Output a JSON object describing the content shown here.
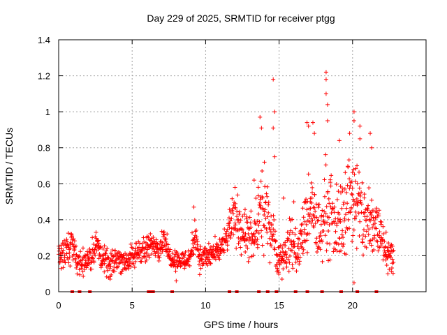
{
  "chart_data": {
    "type": "scatter",
    "title": "Day 229 of 2025, SRMTID for receiver ptgg",
    "xlabel": "GPS time / hours",
    "ylabel": "SRMTID / TECUs",
    "xlim": [
      0,
      25
    ],
    "ylim": [
      0,
      1.4
    ],
    "x_ticks": [
      0,
      5,
      10,
      15,
      20
    ],
    "y_ticks": [
      0,
      0.2,
      0.4,
      0.6,
      0.8,
      1,
      1.2,
      1.4
    ],
    "x_tick_labels": [
      "0",
      "5",
      "10",
      "15",
      "20"
    ],
    "y_tick_labels": [
      "0",
      "0.2",
      "0.4",
      "0.6",
      "0.8",
      "1",
      "1.2",
      "1.4"
    ],
    "grid": true,
    "marker": "+",
    "color": "#ff0000",
    "profile": [
      [
        0.0,
        0.2,
        0.06
      ],
      [
        0.7,
        0.22,
        0.08
      ],
      [
        0.9,
        0.3,
        0.05
      ],
      [
        1.2,
        0.18,
        0.05
      ],
      [
        1.6,
        0.16,
        0.05
      ],
      [
        2.2,
        0.2,
        0.06
      ],
      [
        2.6,
        0.26,
        0.07
      ],
      [
        3.0,
        0.18,
        0.05
      ],
      [
        3.5,
        0.14,
        0.05
      ],
      [
        4.0,
        0.19,
        0.05
      ],
      [
        4.5,
        0.17,
        0.05
      ],
      [
        5.0,
        0.18,
        0.05
      ],
      [
        5.5,
        0.24,
        0.05
      ],
      [
        6.0,
        0.22,
        0.06
      ],
      [
        6.4,
        0.27,
        0.04
      ],
      [
        6.9,
        0.25,
        0.05
      ],
      [
        7.2,
        0.31,
        0.04
      ],
      [
        7.5,
        0.2,
        0.04
      ],
      [
        8.0,
        0.18,
        0.04
      ],
      [
        8.6,
        0.17,
        0.04
      ],
      [
        9.0,
        0.2,
        0.05
      ],
      [
        9.3,
        0.34,
        0.07
      ],
      [
        9.6,
        0.18,
        0.05
      ],
      [
        10.2,
        0.2,
        0.05
      ],
      [
        10.8,
        0.22,
        0.05
      ],
      [
        11.3,
        0.26,
        0.05
      ],
      [
        11.8,
        0.4,
        0.09
      ],
      [
        12.3,
        0.38,
        0.1
      ],
      [
        12.8,
        0.3,
        0.1
      ],
      [
        13.3,
        0.28,
        0.1
      ],
      [
        13.7,
        0.45,
        0.15
      ],
      [
        14.1,
        0.4,
        0.12
      ],
      [
        14.5,
        0.38,
        0.12
      ],
      [
        14.9,
        0.18,
        0.06
      ],
      [
        15.3,
        0.2,
        0.07
      ],
      [
        15.8,
        0.28,
        0.1
      ],
      [
        16.3,
        0.22,
        0.08
      ],
      [
        16.8,
        0.38,
        0.15
      ],
      [
        17.3,
        0.45,
        0.14
      ],
      [
        17.8,
        0.3,
        0.12
      ],
      [
        18.2,
        0.5,
        0.18
      ],
      [
        18.7,
        0.35,
        0.15
      ],
      [
        19.2,
        0.4,
        0.15
      ],
      [
        19.6,
        0.48,
        0.18
      ],
      [
        20.0,
        0.55,
        0.2
      ],
      [
        20.4,
        0.45,
        0.18
      ],
      [
        20.8,
        0.4,
        0.17
      ],
      [
        21.2,
        0.35,
        0.15
      ],
      [
        21.6,
        0.38,
        0.15
      ],
      [
        22.0,
        0.32,
        0.1
      ],
      [
        22.4,
        0.22,
        0.06
      ],
      [
        22.8,
        0.2,
        0.05
      ]
    ],
    "peaks": [
      [
        9.2,
        0.47
      ],
      [
        13.7,
        0.97
      ],
      [
        13.8,
        0.91
      ],
      [
        14.6,
        1.18
      ],
      [
        14.7,
        1.0
      ],
      [
        14.6,
        0.91
      ],
      [
        14.7,
        0.75
      ],
      [
        16.9,
        0.94
      ],
      [
        17.3,
        0.94
      ],
      [
        17.4,
        0.88
      ],
      [
        18.2,
        1.22
      ],
      [
        18.2,
        1.18
      ],
      [
        18.2,
        1.1
      ],
      [
        18.3,
        1.04
      ],
      [
        18.3,
        0.95
      ],
      [
        19.8,
        0.88
      ],
      [
        20.1,
        1.0
      ],
      [
        20.1,
        0.95
      ],
      [
        20.5,
        0.92
      ],
      [
        21.2,
        0.88
      ],
      [
        21.3,
        0.8
      ],
      [
        20.5,
        0.85
      ],
      [
        17.0,
        0.92
      ],
      [
        12.0,
        0.58
      ],
      [
        13.3,
        0.62
      ],
      [
        14.0,
        0.72
      ],
      [
        15.3,
        0.52
      ],
      [
        16.0,
        0.5
      ],
      [
        19.1,
        0.84
      ],
      [
        20.3,
        0.7
      ]
    ],
    "lows": [
      [
        20.1,
        0.05
      ],
      [
        3.5,
        0.07
      ],
      [
        8.0,
        0.06
      ],
      [
        15.2,
        0.07
      ],
      [
        22.4,
        0.1
      ]
    ],
    "baseline_marks": [
      0.9,
      1.4,
      2.1,
      6.1,
      6.3,
      6.4,
      7.7,
      11.6,
      12.1,
      13.6,
      14.2,
      14.8,
      16.1,
      16.9,
      17.9,
      19.2,
      20.3,
      21.6
    ]
  }
}
